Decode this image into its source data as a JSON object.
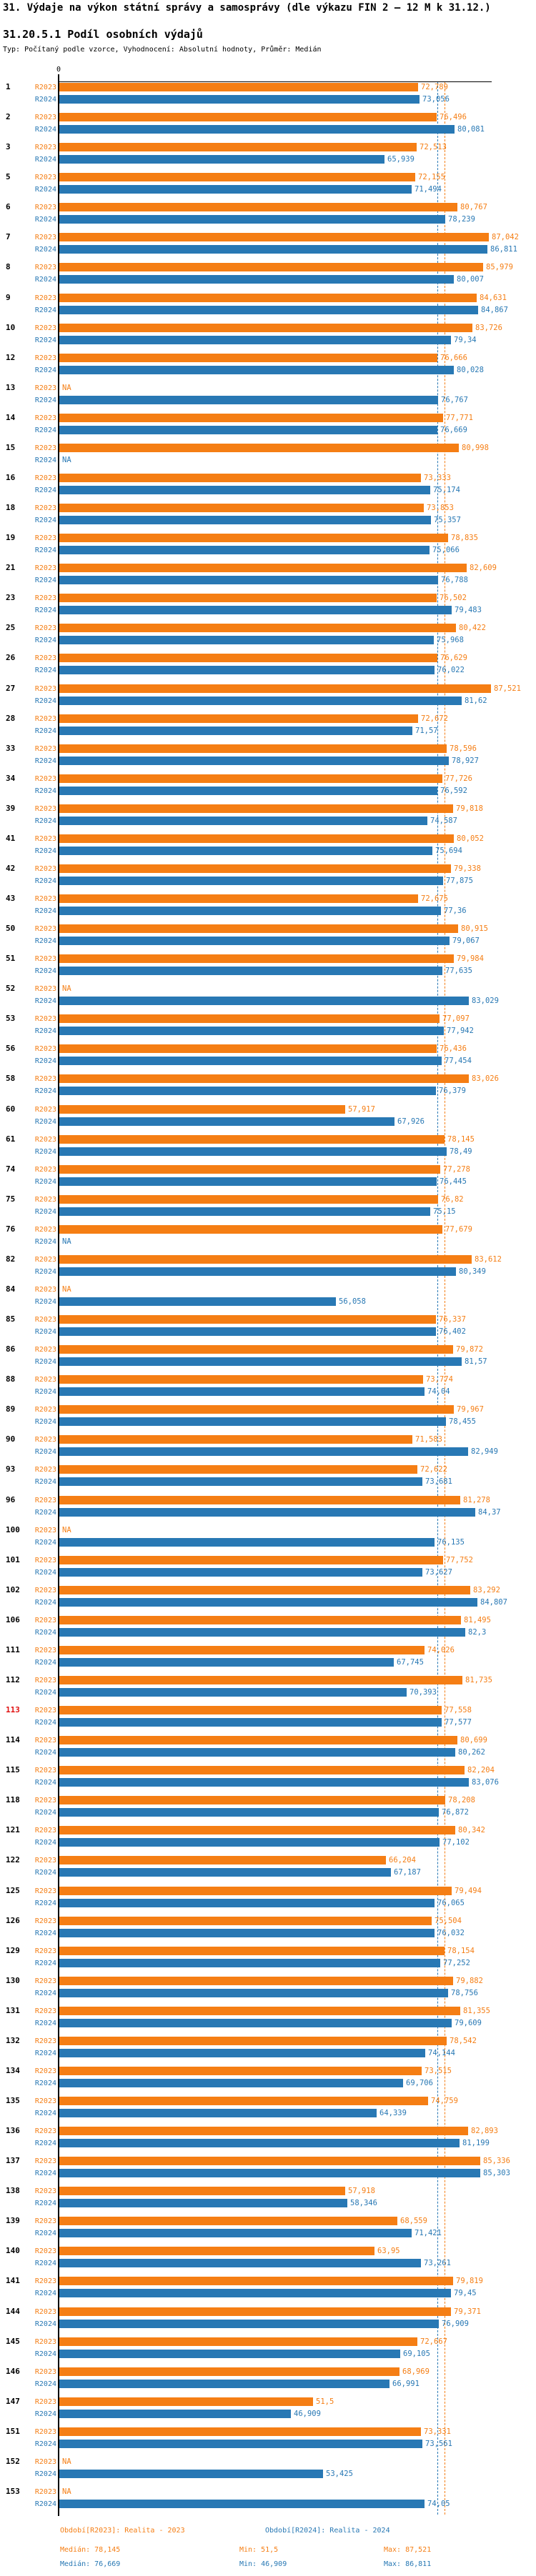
{
  "header": {
    "title": "31. Výdaje na výkon státní správy a samosprávy (dle výkazu FIN 2 – 12 M k 31.12.)",
    "subtitle": "31.20.5.1 Podíl osobních výdajů",
    "meta": "Typ: Počítaný podle vzorce, Vyhodnocení: Absolutní hodnoty, Průměr: Medián"
  },
  "axis": {
    "zero_label": "0"
  },
  "footer": {
    "r2023": {
      "period": "Období[R2023]: Realita - 2023",
      "median": "Medián: 78,145",
      "min": "Min: 51,5",
      "max": "Max: 87,521"
    },
    "r2024": {
      "period": "Období[R2024]: Realita - 2024",
      "median": "Medián: 76,669",
      "min": "Min: 46,909",
      "max": "Max: 86,811"
    }
  },
  "chart_data": {
    "type": "bar",
    "orientation": "horizontal",
    "title": "31.20.5.1 Podíl osobních výdajů",
    "xlabel": "",
    "ylabel": "",
    "xlim": [
      0,
      87.521
    ],
    "grid": false,
    "na_label": "NA",
    "highlighted_category": "113",
    "highlight_color": "#e01010",
    "categories": [
      "1",
      "2",
      "3",
      "5",
      "6",
      "7",
      "8",
      "9",
      "10",
      "12",
      "13",
      "14",
      "15",
      "16",
      "18",
      "19",
      "21",
      "23",
      "25",
      "26",
      "27",
      "28",
      "33",
      "34",
      "39",
      "41",
      "42",
      "43",
      "50",
      "51",
      "52",
      "53",
      "56",
      "58",
      "60",
      "61",
      "74",
      "75",
      "76",
      "82",
      "84",
      "85",
      "86",
      "88",
      "89",
      "90",
      "93",
      "96",
      "100",
      "101",
      "102",
      "106",
      "111",
      "112",
      "113",
      "114",
      "115",
      "118",
      "121",
      "122",
      "125",
      "126",
      "129",
      "130",
      "131",
      "132",
      "134",
      "135",
      "136",
      "137",
      "138",
      "139",
      "140",
      "141",
      "144",
      "145",
      "146",
      "147",
      "151",
      "152",
      "153"
    ],
    "series": [
      {
        "name": "R2023",
        "color": "#f57e14",
        "median": 78.145,
        "min": 51.5,
        "max": 87.521,
        "values": [
          72.789,
          76.496,
          72.513,
          72.155,
          80.767,
          87.042,
          85.979,
          84.631,
          83.726,
          76.666,
          null,
          77.771,
          80.998,
          73.333,
          73.853,
          78.835,
          82.609,
          76.502,
          80.422,
          76.629,
          87.521,
          72.672,
          78.596,
          77.726,
          79.818,
          80.052,
          79.338,
          72.675,
          80.915,
          79.984,
          null,
          77.097,
          76.436,
          83.026,
          57.917,
          78.145,
          77.278,
          76.82,
          77.679,
          83.612,
          null,
          76.337,
          79.872,
          73.774,
          79.967,
          71.583,
          72.622,
          81.278,
          null,
          77.752,
          83.292,
          81.495,
          74.026,
          81.735,
          77.558,
          80.699,
          82.204,
          78.208,
          80.342,
          66.204,
          79.494,
          75.504,
          78.154,
          79.882,
          81.355,
          78.542,
          73.515,
          74.759,
          82.893,
          85.336,
          57.918,
          68.559,
          63.95,
          79.819,
          79.371,
          72.667,
          68.969,
          51.5,
          73.331,
          null,
          null
        ]
      },
      {
        "name": "R2024",
        "color": "#2878b4",
        "median": 76.669,
        "min": 46.909,
        "max": 86.811,
        "values": [
          73.056,
          80.081,
          65.939,
          71.494,
          78.239,
          86.811,
          80.007,
          84.867,
          79.34,
          80.028,
          76.767,
          76.669,
          null,
          75.174,
          75.357,
          75.066,
          76.788,
          79.483,
          75.968,
          76.022,
          81.62,
          71.57,
          78.927,
          76.592,
          74.587,
          75.694,
          77.875,
          77.36,
          79.067,
          77.635,
          83.029,
          77.942,
          77.454,
          76.379,
          67.926,
          78.49,
          76.445,
          75.15,
          null,
          80.349,
          56.058,
          76.402,
          81.57,
          74.04,
          78.455,
          82.949,
          73.681,
          84.37,
          76.135,
          73.627,
          84.807,
          82.3,
          67.745,
          70.393,
          77.577,
          80.262,
          83.076,
          76.872,
          77.102,
          67.187,
          76.065,
          76.032,
          77.252,
          78.756,
          79.609,
          74.144,
          69.706,
          64.339,
          81.199,
          85.303,
          58.346,
          71.421,
          73.261,
          79.45,
          76.909,
          69.105,
          66.991,
          46.909,
          73.561,
          53.425,
          74.05
        ]
      }
    ]
  }
}
